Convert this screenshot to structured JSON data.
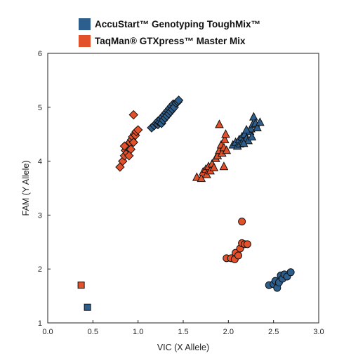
{
  "chart_data": {
    "type": "scatter",
    "title": "",
    "xlabel": "VIC (X Allele)",
    "ylabel": "FAM (Y Allele)",
    "xlim": [
      0.0,
      3.0
    ],
    "ylim": [
      1,
      6
    ],
    "xticks": [
      "0.0",
      "0.5",
      "1.0",
      "1.5",
      "2.0",
      "2.5",
      "3.0"
    ],
    "yticks": [
      "1",
      "2",
      "3",
      "4",
      "5",
      "6"
    ],
    "grid": false,
    "legend_position": "top-center",
    "series": [
      {
        "name": "AccuStart™ Genotyping ToughMix™",
        "color": "#2d5f8e",
        "groups": [
          {
            "marker": "diamond",
            "points": [
              [
                1.15,
                4.62
              ],
              [
                1.18,
                4.66
              ],
              [
                1.2,
                4.7
              ],
              [
                1.22,
                4.68
              ],
              [
                1.22,
                4.74
              ],
              [
                1.24,
                4.72
              ],
              [
                1.25,
                4.78
              ],
              [
                1.26,
                4.7
              ],
              [
                1.27,
                4.82
              ],
              [
                1.28,
                4.76
              ],
              [
                1.29,
                4.86
              ],
              [
                1.3,
                4.8
              ],
              [
                1.31,
                4.9
              ],
              [
                1.32,
                4.84
              ],
              [
                1.33,
                4.94
              ],
              [
                1.34,
                4.88
              ],
              [
                1.35,
                4.98
              ],
              [
                1.36,
                4.92
              ],
              [
                1.37,
                5.02
              ],
              [
                1.38,
                4.96
              ],
              [
                1.39,
                5.06
              ],
              [
                1.4,
                5.0
              ],
              [
                1.42,
                5.08
              ],
              [
                1.44,
                5.1
              ],
              [
                1.45,
                5.13
              ]
            ]
          },
          {
            "marker": "triangle",
            "points": [
              [
                2.05,
                4.3
              ],
              [
                2.08,
                4.35
              ],
              [
                2.1,
                4.28
              ],
              [
                2.12,
                4.4
              ],
              [
                2.13,
                4.32
              ],
              [
                2.15,
                4.45
              ],
              [
                2.16,
                4.36
              ],
              [
                2.18,
                4.5
              ],
              [
                2.2,
                4.42
              ],
              [
                2.22,
                4.38
              ],
              [
                2.24,
                4.55
              ],
              [
                2.25,
                4.6
              ],
              [
                2.26,
                4.45
              ],
              [
                2.27,
                4.68
              ],
              [
                2.28,
                4.82
              ],
              [
                2.3,
                4.7
              ],
              [
                2.32,
                4.62
              ],
              [
                2.35,
                4.72
              ],
              [
                2.2,
                4.58
              ],
              [
                2.17,
                4.33
              ]
            ]
          },
          {
            "marker": "circle",
            "points": [
              [
                2.45,
                1.7
              ],
              [
                2.5,
                1.72
              ],
              [
                2.52,
                1.78
              ],
              [
                2.54,
                1.65
              ],
              [
                2.56,
                1.75
              ],
              [
                2.58,
                1.88
              ],
              [
                2.6,
                1.82
              ],
              [
                2.62,
                1.9
              ],
              [
                2.65,
                1.86
              ],
              [
                2.69,
                1.94
              ]
            ]
          },
          {
            "marker": "square",
            "points": [
              [
                0.44,
                1.29
              ]
            ]
          }
        ]
      },
      {
        "name": "TaqMan® GTXpress™ Master Mix",
        "color": "#e2512a",
        "groups": [
          {
            "marker": "diamond",
            "points": [
              [
                0.8,
                3.89
              ],
              [
                0.83,
                4.0
              ],
              [
                0.85,
                4.1
              ],
              [
                0.86,
                4.2
              ],
              [
                0.88,
                4.15
              ],
              [
                0.89,
                4.25
              ],
              [
                0.9,
                4.3
              ],
              [
                0.91,
                4.35
              ],
              [
                0.92,
                4.22
              ],
              [
                0.93,
                4.4
              ],
              [
                0.94,
                4.45
              ],
              [
                0.95,
                4.35
              ],
              [
                0.96,
                4.5
              ],
              [
                0.97,
                4.48
              ],
              [
                0.98,
                4.55
              ],
              [
                1.0,
                4.58
              ],
              [
                0.85,
                4.28
              ],
              [
                0.9,
                4.1
              ],
              [
                0.95,
                4.86
              ]
            ]
          },
          {
            "marker": "triangle",
            "points": [
              [
                1.65,
                3.7
              ],
              [
                1.7,
                3.68
              ],
              [
                1.72,
                3.8
              ],
              [
                1.75,
                3.85
              ],
              [
                1.76,
                3.75
              ],
              [
                1.78,
                3.9
              ],
              [
                1.8,
                3.82
              ],
              [
                1.82,
                3.95
              ],
              [
                1.84,
                3.88
              ],
              [
                1.86,
                4.05
              ],
              [
                1.88,
                4.1
              ],
              [
                1.9,
                4.2
              ],
              [
                1.92,
                4.3
              ],
              [
                1.93,
                4.15
              ],
              [
                1.95,
                4.25
              ],
              [
                1.96,
                4.4
              ],
              [
                1.97,
                4.5
              ],
              [
                1.98,
                4.2
              ],
              [
                1.9,
                4.68
              ],
              [
                1.95,
                3.9
              ]
            ]
          },
          {
            "marker": "circle",
            "points": [
              [
                1.98,
                2.2
              ],
              [
                2.03,
                2.2
              ],
              [
                2.07,
                2.18
              ],
              [
                2.08,
                2.3
              ],
              [
                2.11,
                2.25
              ],
              [
                2.13,
                2.38
              ],
              [
                2.15,
                2.48
              ],
              [
                2.18,
                2.46
              ],
              [
                2.21,
                2.46
              ],
              [
                2.15,
                2.88
              ]
            ]
          },
          {
            "marker": "square",
            "points": [
              [
                0.37,
                1.7
              ]
            ]
          }
        ]
      }
    ]
  }
}
